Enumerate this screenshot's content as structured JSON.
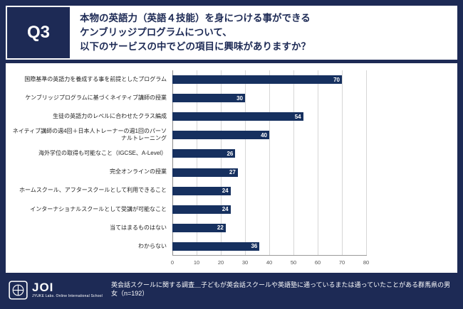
{
  "header": {
    "question_number": "Q3",
    "title_lines": [
      "本物の英語力（英語４技能）を身につける事ができる",
      "ケンブリッジプログラムについて、",
      "以下のサービスの中でどの項目に興味がありますか？"
    ]
  },
  "chart_data": {
    "type": "bar",
    "orientation": "horizontal",
    "title": "",
    "xlabel": "",
    "ylabel": "",
    "categories": [
      "国際基準の英語力を養成する事を前提としたプログラム",
      "ケンブリッジプログラムに基づくネイティブ講師の授業",
      "生徒の英語力のレベルに合わせたクラス編成",
      "ネイティブ講師の週4回＋日本人トレーナーの週1回のパーソナルトレーニング",
      "海外学位の取得も可能なこと（IGCSE、A-Level）",
      "完全オンラインの授業",
      "ホームスクール、アフタースクールとして利用できること",
      "インターナショナルスクールとして受講が可能なこと",
      "当てはまるものはない",
      "わからない"
    ],
    "values": [
      70,
      30,
      54,
      40,
      26,
      27,
      24,
      24,
      22,
      36
    ],
    "xlim": [
      0,
      80
    ],
    "xticks": [
      0,
      10,
      20,
      30,
      40,
      50,
      60,
      70,
      80
    ],
    "grid": true,
    "legend": false,
    "bar_color": "#16305f"
  },
  "footer": {
    "logo_text": "JOI",
    "logo_subtext": "JYUKE Labs. Online International School",
    "source_note": "英会話スクールに関する調査＿子どもが英会話スクールや英語塾に通っているまたは通っていたことがある群馬県の男女（n=192）"
  },
  "colors": {
    "frame_navy": "#1d2a55",
    "bar_navy": "#16305f",
    "panel_white": "#ffffff"
  }
}
